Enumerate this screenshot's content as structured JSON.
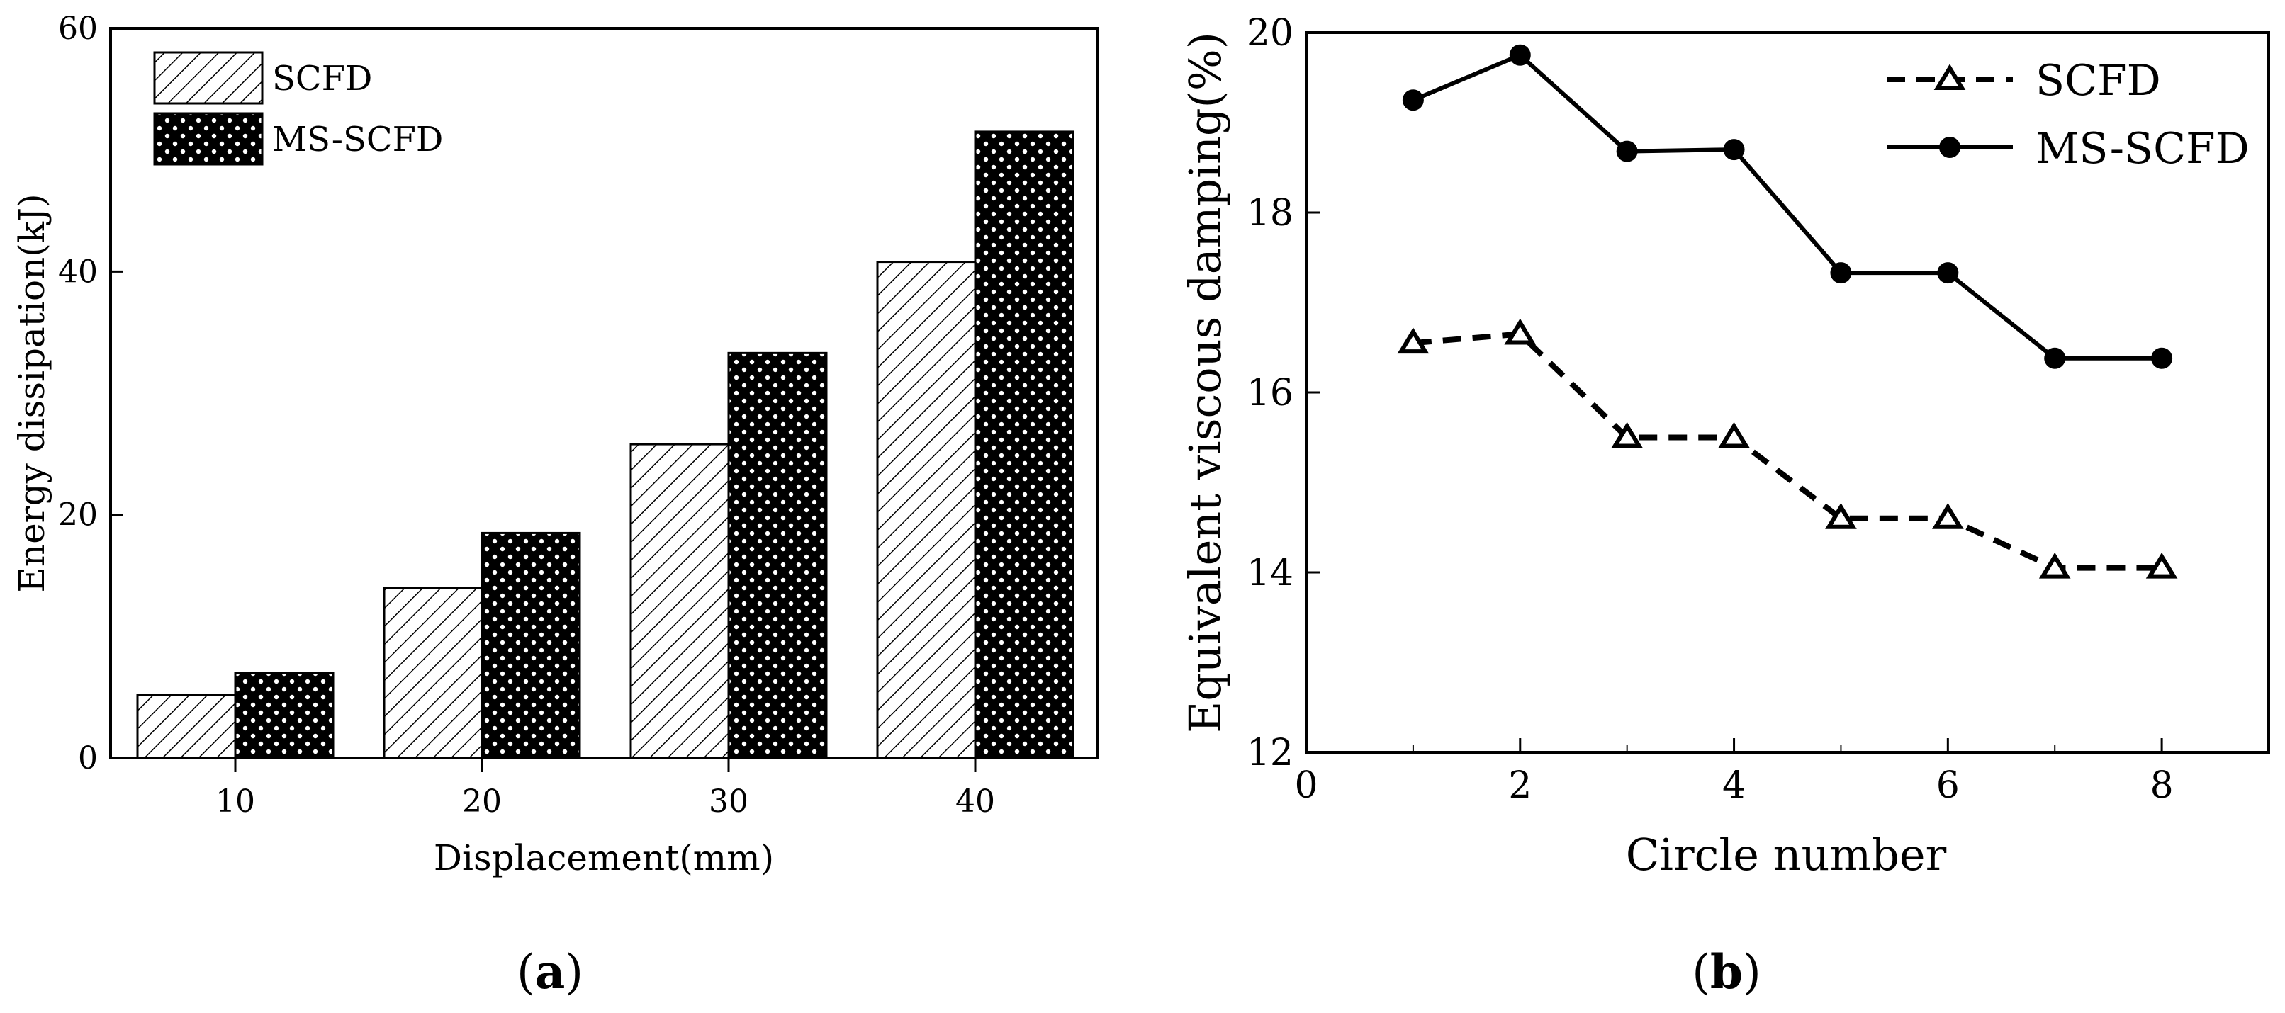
{
  "chart_data": [
    {
      "type": "bar",
      "panel": "a",
      "caption": "a",
      "title": "",
      "xlabel": "Displacement(mm)",
      "ylabel": "Energy dissipation(kJ)",
      "categories": [
        "10",
        "20",
        "30",
        "40"
      ],
      "ylim": [
        0,
        60
      ],
      "yticks": [
        "0",
        "20",
        "40",
        "60"
      ],
      "series": [
        {
          "name": "SCFD",
          "pattern": "hatch",
          "values": [
            5.2,
            14.0,
            25.8,
            40.8
          ]
        },
        {
          "name": "MS-SCFD",
          "pattern": "dots",
          "values": [
            7.0,
            18.5,
            33.3,
            51.5
          ]
        }
      ],
      "legend": "top-left"
    },
    {
      "type": "line",
      "panel": "b",
      "caption": "b",
      "title": "",
      "xlabel": "Circle number",
      "ylabel": "Equivalent viscous damping(%)",
      "xlim": [
        0,
        9
      ],
      "ylim": [
        12,
        20
      ],
      "xticks": [
        "0",
        "2",
        "4",
        "6",
        "8"
      ],
      "yticks": [
        "12",
        "14",
        "16",
        "18",
        "20"
      ],
      "x": [
        1,
        2,
        3,
        4,
        5,
        6,
        7,
        8
      ],
      "series": [
        {
          "name": "SCFD",
          "marker": "open-triangle",
          "line": "dashed",
          "values": [
            16.55,
            16.65,
            15.5,
            15.5,
            14.6,
            14.6,
            14.05,
            14.05
          ]
        },
        {
          "name": "MS-SCFD",
          "marker": "filled-circle",
          "line": "solid",
          "values": [
            19.25,
            19.75,
            18.68,
            18.7,
            17.33,
            17.33,
            16.38,
            16.38
          ]
        }
      ],
      "legend": "top-right"
    }
  ]
}
